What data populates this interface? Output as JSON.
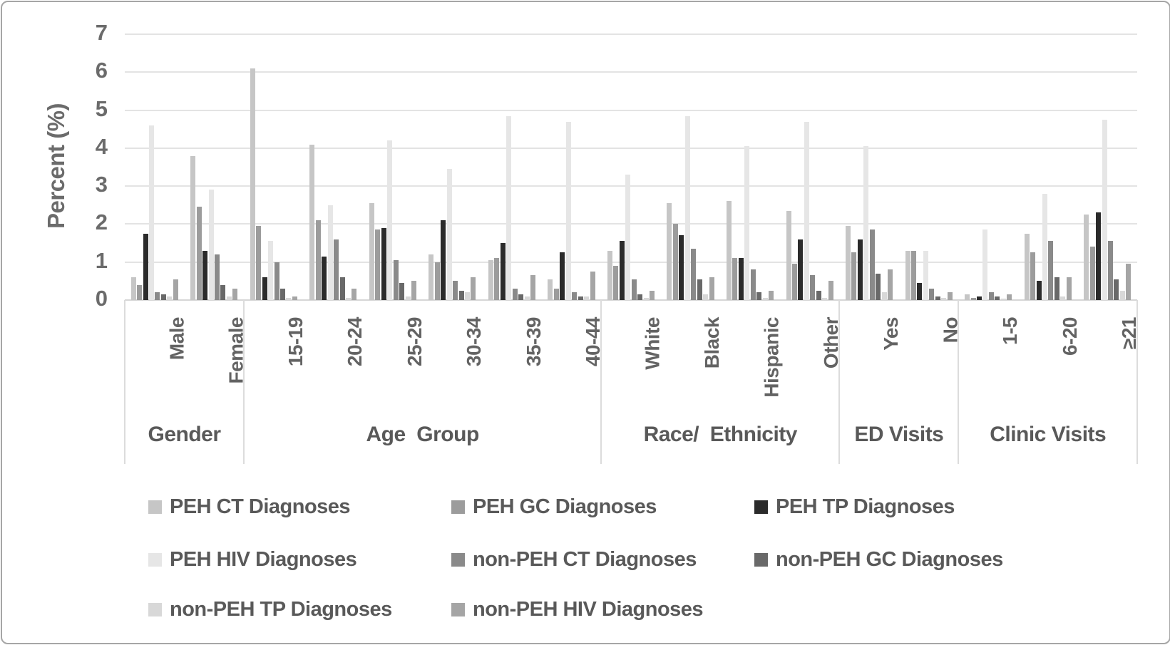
{
  "chart_data": {
    "type": "bar",
    "title": "",
    "xlabel": "",
    "ylabel": "Percent (%)",
    "ylim": [
      0,
      7
    ],
    "y_step": 1,
    "y_tick_labels": [
      "0",
      "1",
      "2",
      "3",
      "4",
      "5",
      "6",
      "7"
    ],
    "grid": true,
    "legend_position": "bottom",
    "groups": [
      {
        "label": "Gender",
        "categories": [
          "Male",
          "Female"
        ]
      },
      {
        "label": "Age  Group",
        "categories": [
          "15-19",
          "20-24",
          "25-29",
          "30-34",
          "35-39",
          "40-44"
        ]
      },
      {
        "label": "Race/  Ethnicity",
        "categories": [
          "White",
          "Black",
          "Hispanic",
          "Other"
        ]
      },
      {
        "label": "ED Visits",
        "categories": [
          "Yes",
          "No"
        ]
      },
      {
        "label": "Clinic Visits",
        "categories": [
          "1-5",
          "6-20",
          "≥21"
        ]
      }
    ],
    "categories": [
      "Male",
      "Female",
      "15-19",
      "20-24",
      "25-29",
      "30-34",
      "35-39",
      "40-44",
      "White",
      "Black",
      "Hispanic",
      "Other",
      "Yes",
      "No",
      "1-5",
      "6-20",
      "≥21"
    ],
    "series": [
      {
        "name": "PEH CT Diagnoses",
        "color": "#c6c6c6",
        "values": [
          0.6,
          3.8,
          6.1,
          4.1,
          2.55,
          1.2,
          1.05,
          0.55,
          1.3,
          2.55,
          2.6,
          2.35,
          1.95,
          1.3,
          0.15,
          1.75,
          2.25
        ]
      },
      {
        "name": "PEH GC Diagnoses",
        "color": "#9c9c9c",
        "values": [
          0.4,
          2.45,
          1.95,
          2.1,
          1.85,
          1.0,
          1.1,
          0.3,
          0.9,
          2.0,
          1.1,
          0.95,
          1.25,
          1.3,
          0.05,
          1.25,
          1.4
        ]
      },
      {
        "name": "PEH TP Diagnoses",
        "color": "#2b2b2b",
        "values": [
          1.75,
          1.3,
          0.6,
          1.15,
          1.9,
          2.1,
          1.5,
          1.25,
          1.55,
          1.7,
          1.1,
          1.6,
          1.6,
          0.45,
          0.1,
          0.5,
          2.3
        ]
      },
      {
        "name": "PEH HIV Diagnoses",
        "color": "#e6e6e6",
        "values": [
          4.6,
          2.9,
          1.55,
          2.5,
          4.2,
          3.45,
          4.85,
          4.7,
          3.3,
          4.85,
          4.05,
          4.7,
          4.05,
          1.3,
          1.85,
          2.8,
          4.75
        ]
      },
      {
        "name": "non-PEH CT Diagnoses",
        "color": "#8a8a8a",
        "values": [
          0.2,
          1.2,
          1.0,
          1.6,
          1.05,
          0.5,
          0.3,
          0.2,
          0.55,
          1.35,
          0.8,
          0.65,
          1.85,
          0.3,
          0.2,
          1.55,
          1.55
        ]
      },
      {
        "name": "non-PEH GC Diagnoses",
        "color": "#696969",
        "values": [
          0.15,
          0.4,
          0.3,
          0.6,
          0.45,
          0.25,
          0.15,
          0.1,
          0.15,
          0.55,
          0.2,
          0.25,
          0.7,
          0.1,
          0.1,
          0.6,
          0.55
        ]
      },
      {
        "name": "non-PEH TP Diagnoses",
        "color": "#d8d8d8",
        "values": [
          0.1,
          0.1,
          0.05,
          0.05,
          0.1,
          0.2,
          0.1,
          0.1,
          0.05,
          0.15,
          0.05,
          0.05,
          0.2,
          0.05,
          0.03,
          0.1,
          0.25
        ]
      },
      {
        "name": "non-PEH HIV Diagnoses",
        "color": "#a5a5a5",
        "values": [
          0.55,
          0.3,
          0.1,
          0.3,
          0.5,
          0.6,
          0.65,
          0.75,
          0.25,
          0.6,
          0.25,
          0.5,
          0.8,
          0.2,
          0.15,
          0.6,
          0.95
        ]
      }
    ],
    "legend_rows": [
      [
        0,
        1,
        2
      ],
      [
        3,
        4,
        5
      ],
      [
        6,
        7
      ]
    ]
  }
}
